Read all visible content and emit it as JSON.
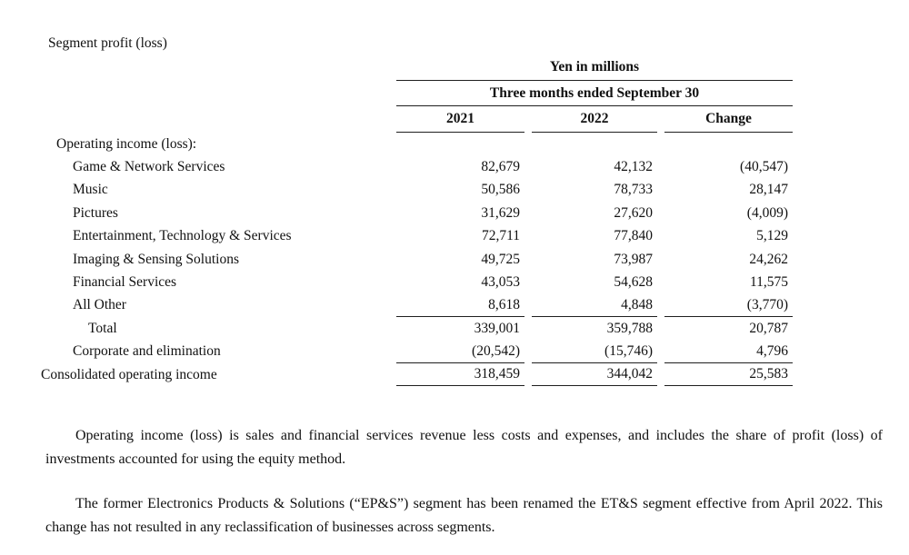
{
  "title": "Segment profit (loss)",
  "table": {
    "unit_header": "Yen in millions",
    "period_header": "Three months ended September 30",
    "columns": {
      "c2021": "2021",
      "c2022": "2022",
      "change": "Change"
    },
    "section_label": "Operating income (loss):",
    "rows": [
      {
        "label": "Game & Network Services",
        "y2021": "82,679",
        "y2022": "42,132",
        "change": "(40,547)"
      },
      {
        "label": "Music",
        "y2021": "50,586",
        "y2022": "78,733",
        "change": "28,147"
      },
      {
        "label": "Pictures",
        "y2021": "31,629",
        "y2022": "27,620",
        "change": "(4,009)"
      },
      {
        "label": "Entertainment, Technology & Services",
        "y2021": "72,711",
        "y2022": "77,840",
        "change": "5,129"
      },
      {
        "label": "Imaging & Sensing Solutions",
        "y2021": "49,725",
        "y2022": "73,987",
        "change": "24,262"
      },
      {
        "label": "Financial Services",
        "y2021": "43,053",
        "y2022": "54,628",
        "change": "11,575"
      },
      {
        "label": "All Other",
        "y2021": "8,618",
        "y2022": "4,848",
        "change": "(3,770)"
      },
      {
        "label": "Total",
        "y2021": "339,001",
        "y2022": "359,788",
        "change": "20,787"
      },
      {
        "label": "Corporate and elimination",
        "y2021": "(20,542)",
        "y2022": "(15,746)",
        "change": "4,796"
      },
      {
        "label": "Consolidated operating income",
        "y2021": "318,459",
        "y2022": "344,042",
        "change": "25,583"
      }
    ]
  },
  "footnotes": [
    "Operating income (loss) is sales and financial services revenue less costs and expenses, and includes the share of profit (loss) of investments accounted for using the equity method.",
    "The former Electronics Products & Solutions (“EP&S”) segment has been renamed the ET&S segment effective from April 2022. This change has not resulted in any reclassification of businesses across segments."
  ]
}
